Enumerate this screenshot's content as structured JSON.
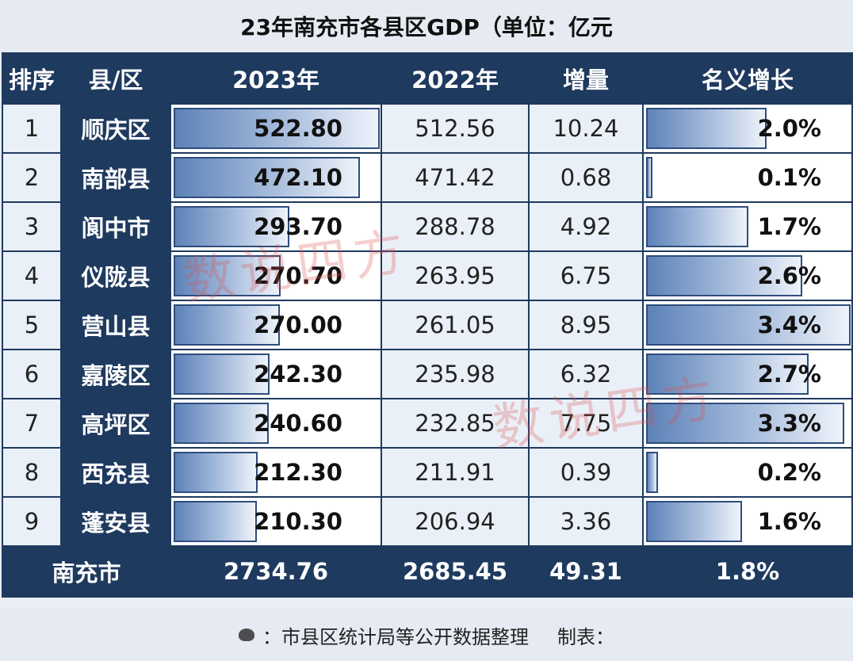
{
  "title": "23年南充市各县区GDP（单位：亿元",
  "headers": [
    "排序",
    "县/区",
    "2023年",
    "2022年",
    "增量",
    "名义增长"
  ],
  "rows": [
    {
      "rank": "1",
      "name": "顺庆区",
      "gdp2023": "522.80",
      "gdp2022": "512.56",
      "increase": "10.24",
      "growth": "2.0%",
      "gdp2023_value": 522.8,
      "growth_value": 2.0
    },
    {
      "rank": "2",
      "name": "南部县",
      "gdp2023": "472.10",
      "gdp2022": "471.42",
      "increase": "0.68",
      "growth": "0.1%",
      "gdp2023_value": 472.1,
      "growth_value": 0.1
    },
    {
      "rank": "3",
      "name": "阆中市",
      "gdp2023": "293.70",
      "gdp2022": "288.78",
      "increase": "4.92",
      "growth": "1.7%",
      "gdp2023_value": 293.7,
      "growth_value": 1.7
    },
    {
      "rank": "4",
      "name": "仪陇县",
      "gdp2023": "270.70",
      "gdp2022": "263.95",
      "increase": "6.75",
      "growth": "2.6%",
      "gdp2023_value": 270.7,
      "growth_value": 2.6
    },
    {
      "rank": "5",
      "name": "营山县",
      "gdp2023": "270.00",
      "gdp2022": "261.05",
      "increase": "8.95",
      "growth": "3.4%",
      "gdp2023_value": 270.0,
      "growth_value": 3.4
    },
    {
      "rank": "6",
      "name": "嘉陵区",
      "gdp2023": "242.30",
      "gdp2022": "235.98",
      "increase": "6.32",
      "growth": "2.7%",
      "gdp2023_value": 242.3,
      "growth_value": 2.7
    },
    {
      "rank": "7",
      "name": "高坪区",
      "gdp2023": "240.60",
      "gdp2022": "232.85",
      "increase": "7.75",
      "growth": "3.3%",
      "gdp2023_value": 240.6,
      "growth_value": 3.3
    },
    {
      "rank": "8",
      "name": "西充县",
      "gdp2023": "212.30",
      "gdp2022": "211.91",
      "increase": "0.39",
      "growth": "0.2%",
      "gdp2023_value": 212.3,
      "growth_value": 0.2
    },
    {
      "rank": "9",
      "name": "蓬安县",
      "gdp2023": "210.30",
      "gdp2022": "206.94",
      "increase": "3.36",
      "growth": "1.6%",
      "gdp2023_value": 210.3,
      "growth_value": 1.6
    }
  ],
  "total": {
    "name": "南充市",
    "gdp2023": "2734.76",
    "gdp2022": "2685.45",
    "increase": "49.31",
    "growth": "1.8%"
  },
  "footer": {
    "source": "：市县区统计局等公开数据整理",
    "maker": "制表："
  },
  "watermark": "数说四方",
  "colors": {
    "header_bg": "#1f3a5f",
    "bar_start": "#5d82b8",
    "bar_end": "#eef3fa",
    "watermark": "#dc5050"
  }
}
